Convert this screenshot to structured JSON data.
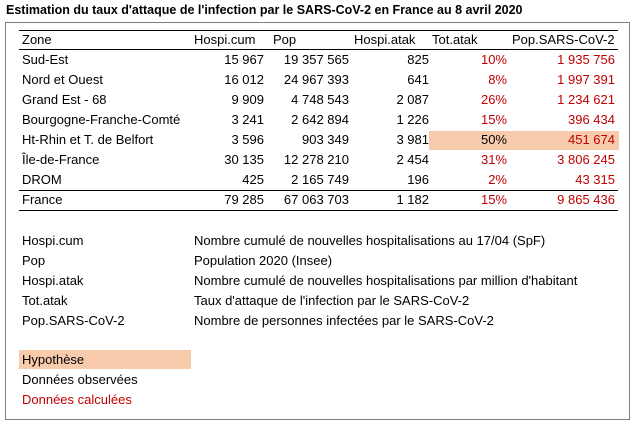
{
  "title": "Estimation du taux d'attaque de l'infection par le SARS-CoV-2 en France au 8 avril 2020",
  "table": {
    "headers": [
      "Zone",
      "Hospi.cum",
      "Pop",
      "Hospi.atak",
      "Tot.atak",
      "Pop.SARS-CoV-2"
    ],
    "rows": [
      {
        "zone": "Sud-Est",
        "hospi_cum": "15 967",
        "pop": "19 357 565",
        "hospi_atak": "825",
        "tot_atak": "10%",
        "pop_sars": "1 935 756"
      },
      {
        "zone": "Nord et Ouest",
        "hospi_cum": "16 012",
        "pop": "24 967 393",
        "hospi_atak": "641",
        "tot_atak": "8%",
        "pop_sars": "1 997 391"
      },
      {
        "zone": "Grand Est - 68",
        "hospi_cum": "9 909",
        "pop": "4 748 543",
        "hospi_atak": "2 087",
        "tot_atak": "26%",
        "pop_sars": "1 234 621"
      },
      {
        "zone": "Bourgogne-Franche-Comté",
        "hospi_cum": "3 241",
        "pop": "2 642 894",
        "hospi_atak": "1 226",
        "tot_atak": "15%",
        "pop_sars": "396 434"
      },
      {
        "zone": "Ht-Rhin et T. de Belfort",
        "hospi_cum": "3 596",
        "pop": "903 349",
        "hospi_atak": "3 981",
        "tot_atak": "50%",
        "pop_sars": "451 674"
      },
      {
        "zone": "Île-de-France",
        "hospi_cum": "30 135",
        "pop": "12 278 210",
        "hospi_atak": "2 454",
        "tot_atak": "31%",
        "pop_sars": "3 806 245"
      },
      {
        "zone": "DROM",
        "hospi_cum": "425",
        "pop": "2 165 749",
        "hospi_atak": "196",
        "tot_atak": "2%",
        "pop_sars": "43 315"
      }
    ],
    "total": {
      "zone": "France",
      "hospi_cum": "79 285",
      "pop": "67 063 703",
      "hospi_atak": "1 182",
      "tot_atak": "15%",
      "pop_sars": "9 865 436"
    }
  },
  "definitions": [
    {
      "term": "Hospi.cum",
      "desc": "Nombre cumulé de nouvelles hospitalisations au 17/04 (SpF)"
    },
    {
      "term": "Pop",
      "desc": "Population 2020 (Insee)"
    },
    {
      "term": "Hospi.atak",
      "desc": "Nombre cumulé de nouvelles hospitalisations par million d'habitant"
    },
    {
      "term": "Tot.atak",
      "desc": "Taux d'attaque de l'infection par le SARS-CoV-2"
    },
    {
      "term": "Pop.SARS-CoV-2",
      "desc": "Nombre de personnes infectées par le SARS-CoV-2"
    }
  ],
  "legend": {
    "hypothesis": "Hypothèse",
    "observed": "Données observées",
    "calculated": "Données calculées"
  },
  "colors": {
    "hypothesis_fill": "#f8cbad",
    "calculated_text": "#c00000",
    "frame_border": "#7f7f7f"
  }
}
